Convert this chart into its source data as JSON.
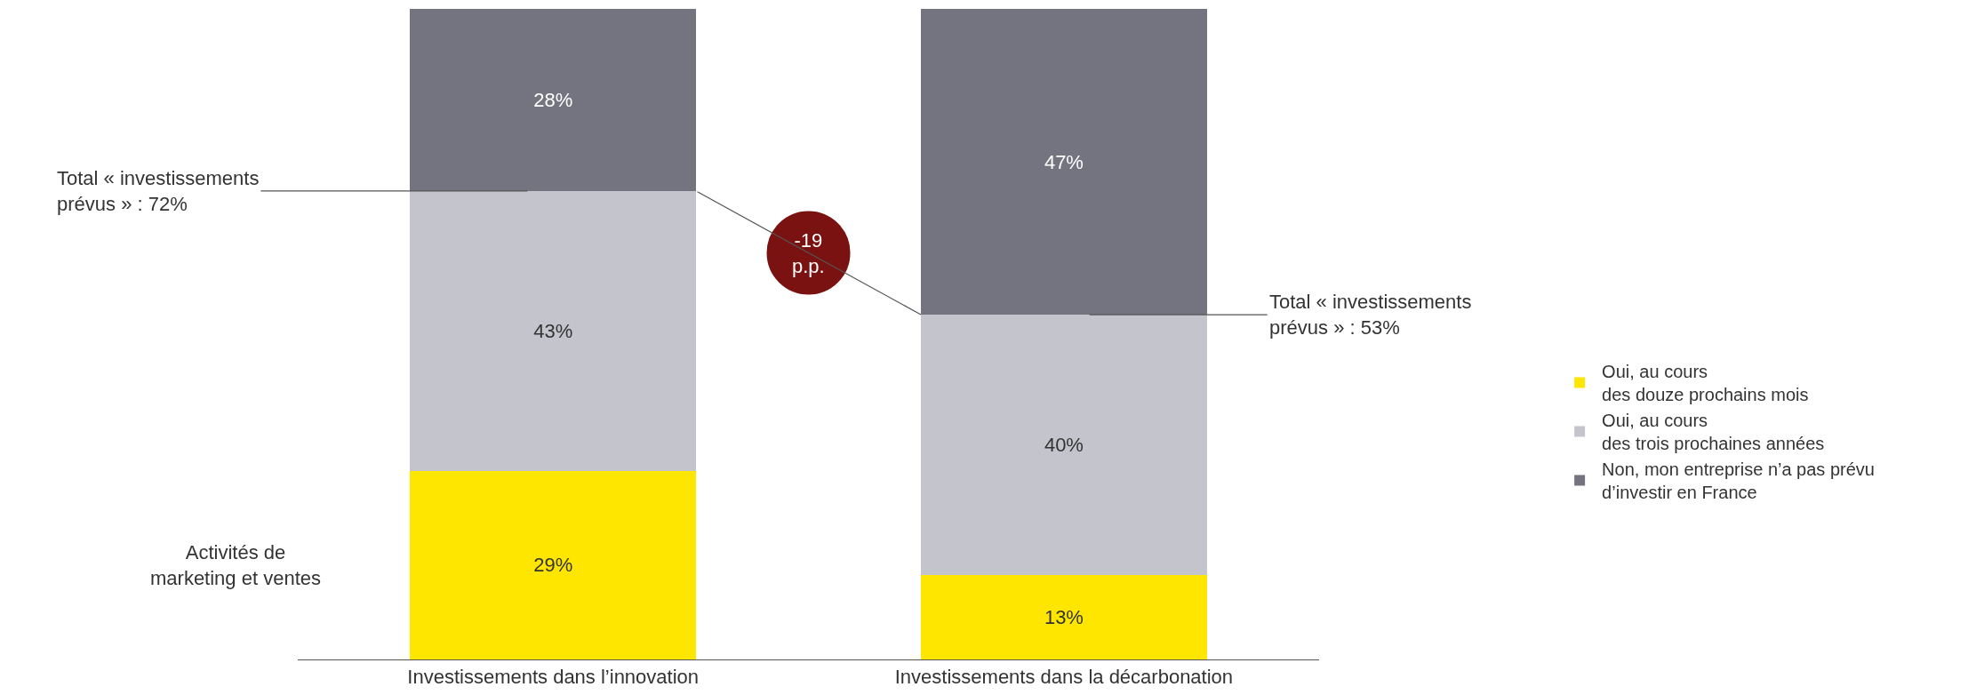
{
  "chart_data": {
    "type": "bar",
    "stacked": true,
    "categories": [
      "Investissements dans l’innovation",
      "Investissements dans la décarbonation"
    ],
    "series": [
      {
        "name": "Oui, au cours\ndes douze prochains mois",
        "color": "#ffe600",
        "values": [
          29,
          13
        ],
        "value_labels": [
          "29%",
          "13%"
        ]
      },
      {
        "name": "Oui, au cours\ndes trois prochaines années",
        "color": "#c4c4cd",
        "values": [
          43,
          40
        ],
        "value_labels": [
          "43%",
          "40%"
        ]
      },
      {
        "name": "Non, mon entreprise n’a pas prévu\nd’investir en France",
        "color": "#747480",
        "values": [
          28,
          47
        ],
        "value_labels": [
          "28%",
          "47%"
        ]
      }
    ],
    "legend": "right",
    "tick_labels": "x",
    "annotations": [
      "Total « investissements\nprévus » : 72%",
      "Total « investissements\nprévus » : 53%",
      "-19\np.p.",
      "Activités de\nmarketing et ventes"
    ]
  }
}
